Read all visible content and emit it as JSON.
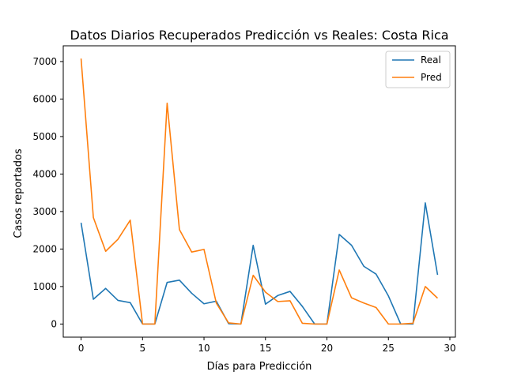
{
  "chart_data": {
    "type": "line",
    "title": "Datos Diarios Recuperados Predicción vs Reales: Costa Rica",
    "xlabel": "Días para Predicción",
    "ylabel": "Casos reportados",
    "xlim": [
      -1.45,
      30.45
    ],
    "ylim": [
      -350,
      7420
    ],
    "xticks": [
      0,
      5,
      10,
      15,
      20,
      25,
      30
    ],
    "yticks": [
      0,
      1000,
      2000,
      3000,
      4000,
      5000,
      6000,
      7000
    ],
    "grid": false,
    "legend": "top-right",
    "x": [
      0,
      1,
      2,
      3,
      4,
      5,
      6,
      7,
      8,
      9,
      10,
      11,
      12,
      13,
      14,
      15,
      16,
      17,
      18,
      19,
      20,
      21,
      22,
      23,
      24,
      25,
      26,
      27,
      28,
      29
    ],
    "series": [
      {
        "name": "Real",
        "color": "#1f77b4",
        "values": [
          2700,
          660,
          950,
          630,
          570,
          0,
          0,
          1110,
          1170,
          820,
          540,
          610,
          10,
          0,
          2100,
          530,
          760,
          870,
          470,
          0,
          0,
          2390,
          2100,
          1540,
          1330,
          750,
          0,
          0,
          3230,
          1310
        ]
      },
      {
        "name": "Pred",
        "color": "#ff7f0e",
        "values": [
          7080,
          2840,
          1940,
          2260,
          2770,
          0,
          0,
          5890,
          2520,
          1920,
          1990,
          560,
          30,
          0,
          1300,
          850,
          600,
          620,
          20,
          0,
          0,
          1440,
          700,
          560,
          440,
          0,
          0,
          20,
          1000,
          690
        ]
      }
    ]
  }
}
